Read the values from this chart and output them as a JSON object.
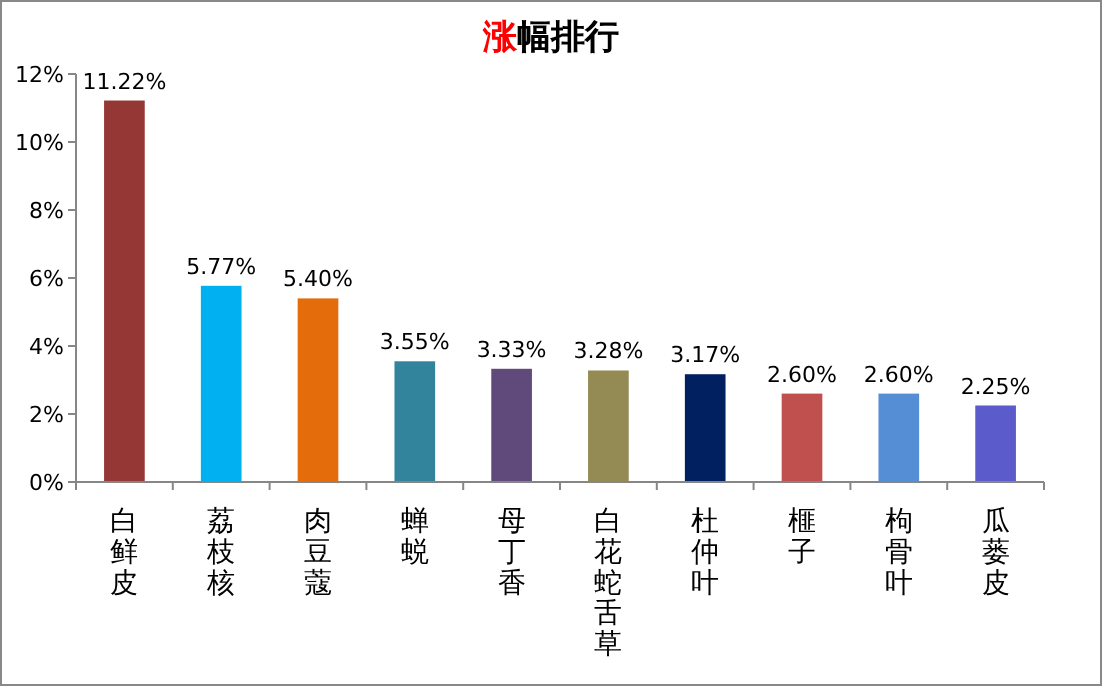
{
  "chart_data": {
    "type": "bar",
    "title": "涨幅排行",
    "categories": [
      "白鲜皮",
      "荔枝核",
      "肉豆蔻",
      "蝉蜕",
      "母丁香",
      "白花蛇舌草",
      "杜仲叶",
      "榧子",
      "枸骨叶",
      "瓜蒌皮"
    ],
    "values": [
      11.22,
      5.77,
      5.4,
      3.55,
      3.33,
      3.28,
      3.17,
      2.6,
      2.6,
      2.25
    ],
    "value_labels": [
      "11.22%",
      "5.77%",
      "5.40%",
      "3.55%",
      "3.33%",
      "3.28%",
      "3.17%",
      "2.60%",
      "2.60%",
      "2.25%"
    ],
    "colors": [
      "#953735",
      "#00b0f0",
      "#e46c0a",
      "#31849b",
      "#604a7b",
      "#948a54",
      "#002060",
      "#c0504d",
      "#558ed5",
      "#5b5bcc"
    ],
    "ylim": [
      0,
      12
    ],
    "yticks": [
      {
        "value": 0,
        "label": "0%"
      },
      {
        "value": 2,
        "label": "2%"
      },
      {
        "value": 4,
        "label": "4%"
      },
      {
        "value": 6,
        "label": "6%"
      },
      {
        "value": 8,
        "label": "8%"
      },
      {
        "value": 10,
        "label": "10%"
      },
      {
        "value": 12,
        "label": "12%"
      }
    ],
    "grid": false
  }
}
